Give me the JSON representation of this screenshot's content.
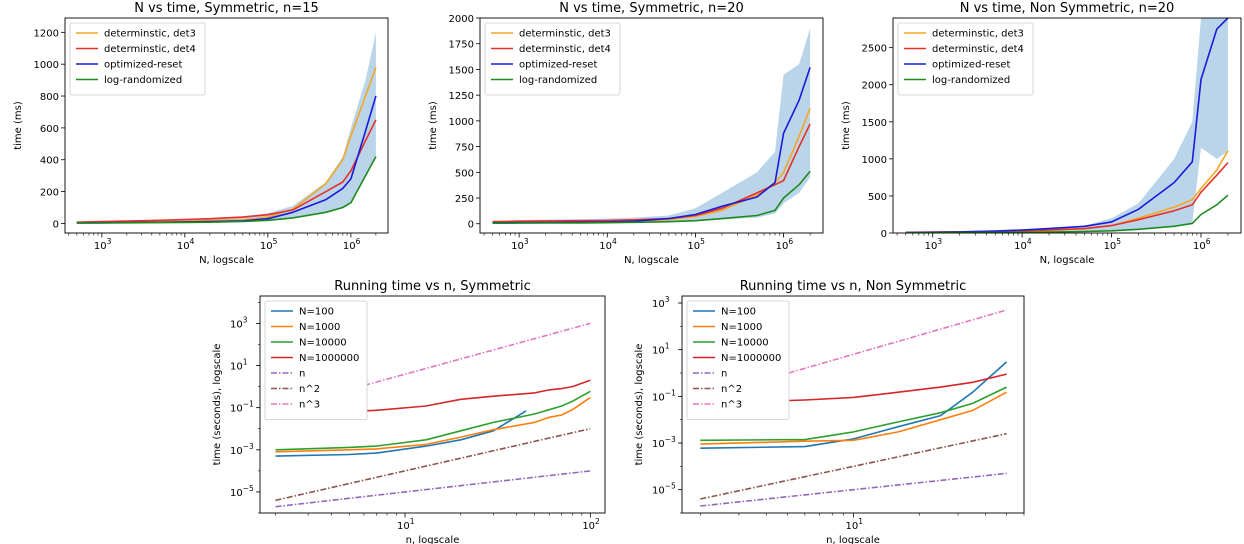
{
  "chart_data": [
    {
      "type": "line",
      "title": "N vs time, Symmetric, n=15",
      "xlabel": "N, logscale",
      "ylabel": "time (ms)",
      "xscale": "log",
      "yscale": "linear",
      "xlim": [
        360,
        2800000
      ],
      "ylim": [
        -60,
        1290
      ],
      "yticks": [
        0,
        200,
        400,
        600,
        800,
        1000,
        1200
      ],
      "xticks": [
        1000,
        10000,
        100000,
        1000000
      ],
      "legend_position": "top-left",
      "x": [
        500,
        1000,
        2000,
        5000,
        10000,
        20000,
        50000,
        100000,
        200000,
        500000,
        800000,
        1000000,
        1500000,
        2000000
      ],
      "series": [
        {
          "name": "determinstic, det3",
          "color": "#f5a623",
          "values": [
            5,
            7,
            9,
            12,
            15,
            18,
            22,
            40,
            90,
            250,
            400,
            550,
            800,
            980
          ]
        },
        {
          "name": "determinstic, det4",
          "color": "#e8302a",
          "values": [
            8,
            12,
            15,
            20,
            25,
            30,
            40,
            55,
            85,
            200,
            260,
            330,
            520,
            650
          ]
        },
        {
          "name": "optimized-reset",
          "color": "#1a1adb",
          "values": [
            3,
            4,
            5,
            7,
            10,
            12,
            16,
            30,
            70,
            150,
            220,
            280,
            580,
            800
          ]
        },
        {
          "name": "log-randomized",
          "color": "#1e8a1e",
          "values": [
            2,
            3,
            4,
            5,
            6,
            8,
            12,
            20,
            35,
            70,
            100,
            130,
            300,
            420
          ]
        }
      ],
      "band": {
        "color": "#b3d0e8",
        "lower": [
          2,
          3,
          4,
          5,
          6,
          8,
          12,
          20,
          35,
          70,
          100,
          130,
          300,
          420
        ],
        "upper": [
          10,
          13,
          16,
          22,
          28,
          34,
          45,
          65,
          110,
          260,
          420,
          600,
          900,
          1200
        ]
      }
    },
    {
      "type": "line",
      "title": "N vs time, Symmetric, n=20",
      "xlabel": "N, logscale",
      "ylabel": "time (ms)",
      "xscale": "log",
      "yscale": "linear",
      "xlim": [
        360,
        2800000
      ],
      "ylim": [
        -90,
        2000
      ],
      "yticks": [
        0,
        250,
        500,
        750,
        1000,
        1250,
        1500,
        1750,
        2000
      ],
      "xticks": [
        1000,
        10000,
        100000,
        1000000
      ],
      "legend_position": "top-left",
      "x": [
        500,
        1000,
        2000,
        5000,
        10000,
        20000,
        50000,
        100000,
        200000,
        500000,
        800000,
        1000000,
        1500000,
        2000000
      ],
      "series": [
        {
          "name": "determinstic, det3",
          "color": "#f5a623",
          "values": [
            10,
            12,
            14,
            17,
            20,
            25,
            40,
            70,
            130,
            280,
            400,
            500,
            850,
            1120
          ]
        },
        {
          "name": "determinstic, det4",
          "color": "#e8302a",
          "values": [
            20,
            25,
            28,
            30,
            32,
            38,
            50,
            80,
            150,
            300,
            380,
            420,
            750,
            970
          ]
        },
        {
          "name": "optimized-reset",
          "color": "#1a1adb",
          "values": [
            8,
            10,
            12,
            15,
            18,
            25,
            50,
            90,
            170,
            260,
            400,
            880,
            1200,
            1520
          ]
        },
        {
          "name": "log-randomized",
          "color": "#1e8a1e",
          "values": [
            5,
            6,
            7,
            8,
            10,
            14,
            20,
            30,
            50,
            80,
            130,
            250,
            380,
            510
          ]
        }
      ],
      "band": {
        "color": "#b3d0e8",
        "lower": [
          3,
          4,
          5,
          6,
          8,
          10,
          15,
          25,
          40,
          60,
          100,
          200,
          300,
          450
        ],
        "upper": [
          30,
          35,
          40,
          45,
          50,
          60,
          80,
          150,
          300,
          500,
          700,
          1450,
          1550,
          1900
        ]
      }
    },
    {
      "type": "line",
      "title": "N vs time, Non Symmetric, n=20",
      "xlabel": "N, logscale",
      "ylabel": "time (ms)",
      "xscale": "log",
      "yscale": "linear",
      "xlim": [
        360,
        2800000
      ],
      "ylim": [
        0,
        2900
      ],
      "yticks": [
        0,
        500,
        1000,
        1500,
        2000,
        2500
      ],
      "xticks": [
        1000,
        10000,
        100000,
        1000000
      ],
      "legend_position": "top-left",
      "x": [
        500,
        1000,
        2000,
        5000,
        10000,
        20000,
        50000,
        100000,
        200000,
        500000,
        800000,
        1000000,
        1500000,
        2000000
      ],
      "series": [
        {
          "name": "determinstic, det3",
          "color": "#f5a623",
          "values": [
            5,
            8,
            12,
            18,
            25,
            35,
            60,
            100,
            200,
            350,
            450,
            600,
            850,
            1110
          ]
        },
        {
          "name": "determinstic, det4",
          "color": "#e8302a",
          "values": [
            8,
            12,
            16,
            22,
            30,
            40,
            60,
            100,
            180,
            300,
            380,
            550,
            780,
            950
          ]
        },
        {
          "name": "optimized-reset",
          "color": "#1a1adb",
          "values": [
            6,
            10,
            15,
            25,
            40,
            60,
            90,
            150,
            320,
            680,
            960,
            2070,
            2750,
            2900
          ]
        },
        {
          "name": "log-randomized",
          "color": "#1e8a1e",
          "values": [
            3,
            4,
            5,
            7,
            10,
            14,
            20,
            30,
            50,
            90,
            130,
            250,
            380,
            510
          ]
        }
      ],
      "band": {
        "color": "#b3d0e8",
        "lower": [
          3,
          4,
          5,
          7,
          10,
          14,
          20,
          30,
          50,
          90,
          130,
          1150,
          1000,
          1100
        ],
        "upper": [
          10,
          15,
          20,
          30,
          50,
          70,
          100,
          200,
          400,
          1000,
          1500,
          2900,
          2900,
          2900
        ]
      }
    },
    {
      "type": "line",
      "title": "Running time vs n, Symmetric",
      "xlabel": "n, logscale",
      "ylabel": "time (seconds), logscale",
      "xscale": "log",
      "yscale": "log",
      "xlim": [
        1.65,
        120
      ],
      "ylim": [
        1e-06,
        20000
      ],
      "yticks": [
        1e-05,
        0.001,
        0.1,
        10,
        1000
      ],
      "ytick_labels": [
        "10^-5",
        "10^-3",
        "10^-1",
        "10^1",
        "10^3"
      ],
      "xticks": [
        10,
        100
      ],
      "xtick_labels": [
        "10^1",
        "10^2"
      ],
      "legend_position": "top-left",
      "series": [
        {
          "name": "N=100",
          "color": "#1f77b4",
          "style": "solid",
          "x": [
            2,
            5,
            7,
            13,
            20,
            30,
            45
          ],
          "values": [
            0.0005,
            0.0006,
            0.0007,
            0.0015,
            0.003,
            0.008,
            0.07
          ]
        },
        {
          "name": "N=1000",
          "color": "#ff7f0e",
          "style": "solid",
          "x": [
            2,
            5,
            7,
            13,
            20,
            30,
            50,
            60,
            70,
            80,
            100
          ],
          "values": [
            0.0008,
            0.001,
            0.0011,
            0.0018,
            0.004,
            0.009,
            0.02,
            0.035,
            0.045,
            0.08,
            0.3
          ]
        },
        {
          "name": "N=10000",
          "color": "#2ca02c",
          "style": "solid",
          "x": [
            2,
            5,
            7,
            13,
            20,
            30,
            50,
            60,
            70,
            80,
            100
          ],
          "values": [
            0.001,
            0.0013,
            0.0015,
            0.003,
            0.008,
            0.02,
            0.05,
            0.08,
            0.12,
            0.2,
            0.6
          ]
        },
        {
          "name": "N=1000000",
          "color": "#d62728",
          "style": "solid",
          "x": [
            2,
            5,
            7,
            13,
            20,
            30,
            50,
            60,
            70,
            80,
            100
          ],
          "values": [
            0.05,
            0.065,
            0.075,
            0.12,
            0.25,
            0.35,
            0.5,
            0.7,
            0.8,
            1.0,
            2.0
          ]
        },
        {
          "name": "n",
          "color": "#9467bd",
          "style": "dashdot",
          "x": [
            2,
            100
          ],
          "values": [
            2e-06,
            0.0001
          ]
        },
        {
          "name": "n^2",
          "color": "#8c564b",
          "style": "dashdot",
          "x": [
            2,
            100
          ],
          "values": [
            4e-06,
            0.01
          ]
        },
        {
          "name": "n^3",
          "color": "#e377c2",
          "style": "dashdot",
          "x": [
            2,
            100
          ],
          "values": [
            0.08,
            1000
          ]
        }
      ]
    },
    {
      "type": "line",
      "title": "Running time vs n, Non Symmetric",
      "xlabel": "n, logscale",
      "ylabel": "time (seconds), logscale",
      "xscale": "log",
      "yscale": "log",
      "xlim": [
        1.65,
        60
      ],
      "ylim": [
        1e-06,
        2000
      ],
      "yticks": [
        1e-05,
        0.001,
        0.1,
        10,
        1000
      ],
      "ytick_labels": [
        "10^-5",
        "10^-3",
        "10^-1",
        "10^1",
        "10^3"
      ],
      "xticks": [
        10
      ],
      "xtick_labels": [
        "10^1"
      ],
      "legend_position": "top-left",
      "series": [
        {
          "name": "N=100",
          "color": "#1f77b4",
          "style": "solid",
          "x": [
            2,
            6,
            10,
            16,
            25,
            35,
            50
          ],
          "values": [
            0.0006,
            0.0007,
            0.0015,
            0.005,
            0.015,
            0.15,
            3
          ]
        },
        {
          "name": "N=1000",
          "color": "#ff7f0e",
          "style": "solid",
          "x": [
            2,
            6,
            10,
            16,
            25,
            35,
            50
          ],
          "values": [
            0.0009,
            0.0012,
            0.0013,
            0.003,
            0.01,
            0.025,
            0.15
          ]
        },
        {
          "name": "N=10000",
          "color": "#2ca02c",
          "style": "solid",
          "x": [
            2,
            6,
            10,
            16,
            25,
            35,
            50
          ],
          "values": [
            0.0013,
            0.0014,
            0.003,
            0.008,
            0.02,
            0.05,
            0.25
          ]
        },
        {
          "name": "N=1000000",
          "color": "#d62728",
          "style": "solid",
          "x": [
            2,
            6,
            10,
            16,
            25,
            35,
            50
          ],
          "values": [
            0.05,
            0.07,
            0.09,
            0.15,
            0.25,
            0.4,
            0.9
          ]
        },
        {
          "name": "n",
          "color": "#9467bd",
          "style": "dashdot",
          "x": [
            2,
            50
          ],
          "values": [
            2e-06,
            5e-05
          ]
        },
        {
          "name": "n^2",
          "color": "#8c564b",
          "style": "dashdot",
          "x": [
            2,
            50
          ],
          "values": [
            4e-06,
            0.0025
          ]
        },
        {
          "name": "n^3",
          "color": "#e377c2",
          "style": "dashdot",
          "x": [
            2,
            50
          ],
          "values": [
            0.08,
            500
          ]
        }
      ]
    }
  ]
}
